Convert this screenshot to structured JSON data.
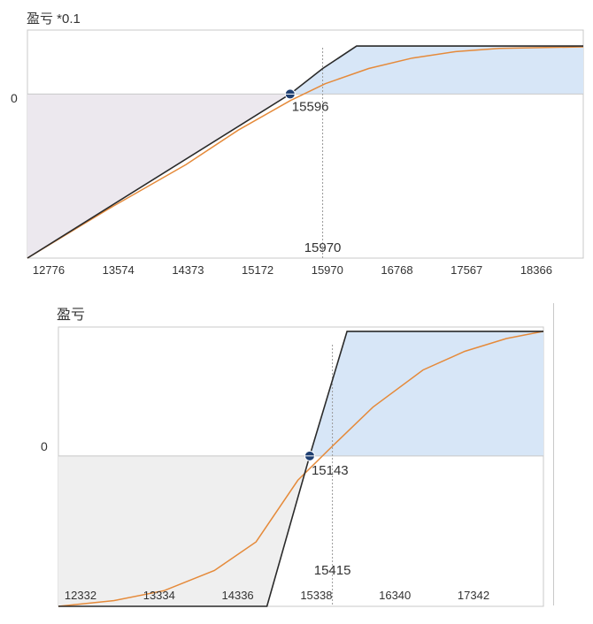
{
  "chart_data": [
    {
      "type": "area",
      "ylabel": "盈亏 *0.1",
      "y_zero_label": "0",
      "xlim": [
        12576,
        18966
      ],
      "ylim": [
        -2050,
        800
      ],
      "x_ticks": [
        "12776",
        "13574",
        "14373",
        "15172",
        "15970",
        "16768",
        "17567",
        "18366"
      ],
      "marker": {
        "x": 15596,
        "label": "15596"
      },
      "ref_line": {
        "x": 15970,
        "label": "15970"
      },
      "series": [
        {
          "color": "#2a2a2a",
          "x": [
            12576,
            15596,
            15970,
            16360,
            18966
          ],
          "y": [
            -2050,
            0,
            320,
            600,
            600
          ]
        },
        {
          "color": "#e58a3a",
          "x": [
            12576,
            13500,
            14400,
            15000,
            15600,
            16000,
            16500,
            17000,
            17500,
            18000,
            18966
          ],
          "y": [
            -2050,
            -1440,
            -880,
            -450,
            -80,
            130,
            320,
            450,
            530,
            570,
            590
          ]
        }
      ],
      "fill": {
        "loss": "#ece8ee",
        "profit": "#d7e6f7"
      }
    },
    {
      "type": "area",
      "ylabel": "盈亏",
      "y_zero_label": "0",
      "xlim": [
        12132,
        17943
      ],
      "ylim": [
        -1050,
        900
      ],
      "x_ticks": [
        "12332",
        "13334",
        "14336",
        "15338",
        "16340",
        "17342"
      ],
      "marker": {
        "x": 15143,
        "label": "15143"
      },
      "ref_line": {
        "x": 15415,
        "label": "15415"
      },
      "series": [
        {
          "color": "#2a2a2a",
          "x": [
            12132,
            14630,
            15143,
            15590,
            17943
          ],
          "y": [
            -1050,
            -1050,
            0,
            870,
            870
          ]
        },
        {
          "color": "#e58a3a",
          "x": [
            12132,
            12800,
            13400,
            14000,
            14500,
            15000,
            15400,
            15900,
            16500,
            17000,
            17500,
            17943
          ],
          "y": [
            -1050,
            -1010,
            -940,
            -800,
            -600,
            -170,
            60,
            340,
            600,
            730,
            820,
            870
          ]
        }
      ],
      "fill": {
        "loss": "#efefef",
        "profit": "#d7e6f7"
      }
    }
  ]
}
